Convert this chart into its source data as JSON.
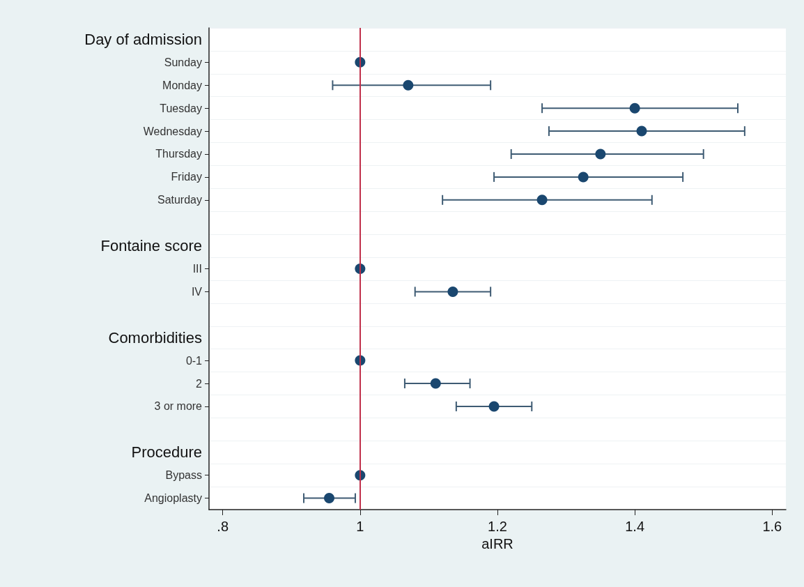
{
  "chart_data": {
    "type": "scatter",
    "orientation": "horizontal",
    "xlabel": "aIRR",
    "categories": [
      "Day of admission",
      "Sunday",
      "Monday",
      "Tuesday",
      "Wednesday",
      "Thursday",
      "Friday",
      "Saturday",
      null,
      "Fontaine score",
      "III",
      "IV",
      null,
      "Comorbidities",
      "0-1",
      "2",
      "3 or more",
      null,
      "Procedure",
      "Bypass",
      "Angioplasty"
    ],
    "series": [
      {
        "color": "#1a476f",
        "values": [
          null,
          1,
          1.07,
          1.4,
          1.41,
          1.35,
          1.325,
          1.265,
          null,
          null,
          1,
          1.135,
          null,
          null,
          1,
          1.11,
          1.195,
          null,
          null,
          1,
          0.955
        ],
        "errors": [
          null,
          null,
          [
            0.96,
            1.19
          ],
          [
            1.265,
            1.55
          ],
          [
            1.275,
            1.56
          ],
          [
            1.22,
            1.5
          ],
          [
            1.195,
            1.47
          ],
          [
            1.12,
            1.425
          ],
          null,
          null,
          null,
          [
            1.08,
            1.19
          ],
          null,
          null,
          null,
          [
            1.065,
            1.16
          ],
          [
            1.14,
            1.25
          ],
          null,
          null,
          null,
          [
            0.918,
            0.993
          ]
        ]
      }
    ],
    "xlim": [
      0.78,
      1.62
    ],
    "xticks": [
      {
        "value": 0.8,
        "label": ".8"
      },
      1,
      1.2,
      1.4,
      1.6
    ],
    "ref_lines": [
      {
        "axis": "x",
        "value": 1,
        "color": "#c0304a"
      }
    ],
    "grid": "y",
    "marker": "circle"
  }
}
